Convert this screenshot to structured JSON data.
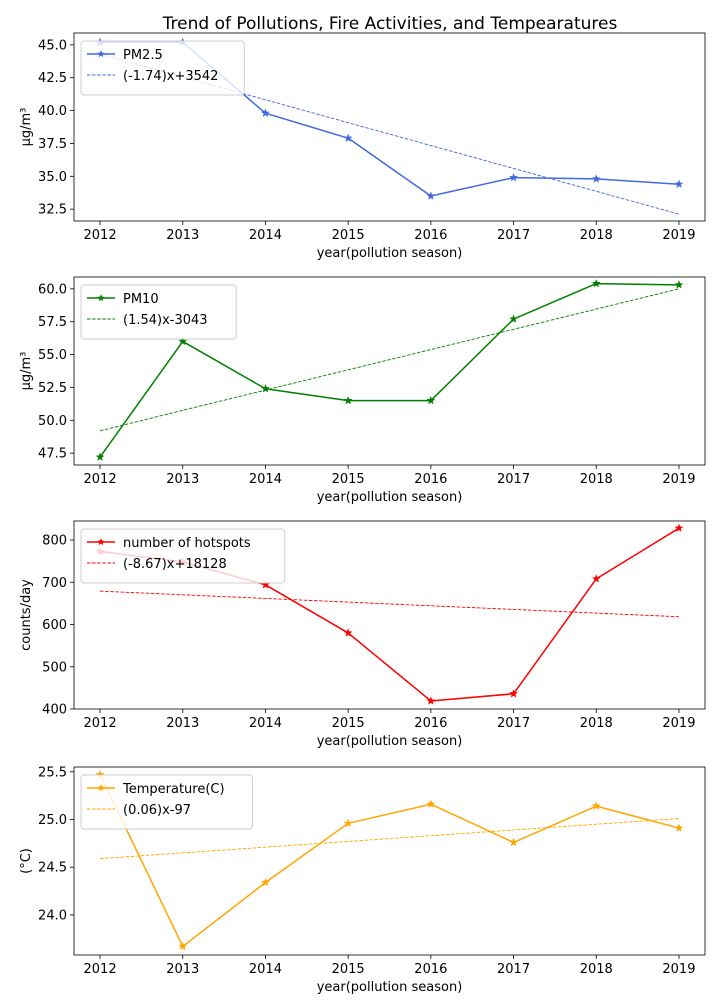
{
  "title": "Trend of Pollutions, Fire Activities, and Tempearatures",
  "chart_data": [
    {
      "type": "line",
      "x": [
        2012,
        2013,
        2014,
        2015,
        2016,
        2017,
        2018,
        2019
      ],
      "xlabel": "year(pollution season)",
      "ylabel": "μg/m³",
      "ylim": [
        31.6,
        45.9
      ],
      "yticks": [
        "32.5",
        "35.0",
        "37.5",
        "40.0",
        "42.5",
        "45.0"
      ],
      "color": "#4169e1",
      "legend_position": "upper left",
      "series": [
        {
          "name": "PM2.5",
          "values": [
            45.2,
            45.2,
            39.8,
            37.9,
            33.5,
            34.9,
            34.8,
            34.4
          ],
          "style": "solid",
          "marker": "star"
        },
        {
          "name": "(-1.74)x+3542",
          "values": [
            44.3,
            42.56,
            40.82,
            39.08,
            37.34,
            35.6,
            33.86,
            32.12
          ],
          "style": "dashed"
        }
      ]
    },
    {
      "type": "line",
      "x": [
        2012,
        2013,
        2014,
        2015,
        2016,
        2017,
        2018,
        2019
      ],
      "xlabel": "year(pollution season)",
      "ylabel": "μg/m³",
      "ylim": [
        46.6,
        60.9
      ],
      "yticks": [
        "47.5",
        "50.0",
        "52.5",
        "55.0",
        "57.5",
        "60.0"
      ],
      "color": "#008000",
      "legend_position": "upper left",
      "series": [
        {
          "name": "PM10",
          "values": [
            47.2,
            56.0,
            52.4,
            51.5,
            51.5,
            57.7,
            60.4,
            60.3
          ],
          "style": "solid",
          "marker": "star"
        },
        {
          "name": "(1.54)x-3043",
          "values": [
            49.2,
            50.76,
            52.3,
            53.84,
            55.38,
            56.92,
            58.46,
            60.0
          ],
          "style": "dashed"
        }
      ]
    },
    {
      "type": "line",
      "x": [
        2012,
        2013,
        2014,
        2015,
        2016,
        2017,
        2018,
        2019
      ],
      "xlabel": "year(pollution season)",
      "ylabel": "counts/day",
      "ylim": [
        400,
        845
      ],
      "yticks": [
        "400",
        "500",
        "600",
        "700",
        "800"
      ],
      "color": "#ff0000",
      "legend_position": "upper left",
      "series": [
        {
          "name": "number of hotspots",
          "values": [
            773,
            748,
            694,
            580,
            419,
            436,
            708,
            828
          ],
          "style": "solid",
          "marker": "star"
        },
        {
          "name": "(-8.67)x+18128",
          "values": [
            679,
            670.3,
            661.7,
            653,
            644.3,
            635.7,
            627,
            618.3
          ],
          "style": "dashed"
        }
      ]
    },
    {
      "type": "line",
      "x": [
        2012,
        2013,
        2014,
        2015,
        2016,
        2017,
        2018,
        2019
      ],
      "xlabel": "year(pollution season)",
      "ylabel": "(°C)",
      "ylim": [
        23.58,
        25.55
      ],
      "yticks": [
        "24.0",
        "24.5",
        "25.0",
        "25.5"
      ],
      "color": "#ffa500",
      "legend_position": "upper left",
      "series": [
        {
          "name": "Temperature(C)",
          "values": [
            25.47,
            23.67,
            24.34,
            24.96,
            25.16,
            24.76,
            25.14,
            24.91
          ],
          "style": "solid",
          "marker": "star"
        },
        {
          "name": "(0.06)x-97",
          "values": [
            24.59,
            24.65,
            24.71,
            24.77,
            24.83,
            24.89,
            24.95,
            25.01
          ],
          "style": "dashed"
        }
      ]
    }
  ]
}
